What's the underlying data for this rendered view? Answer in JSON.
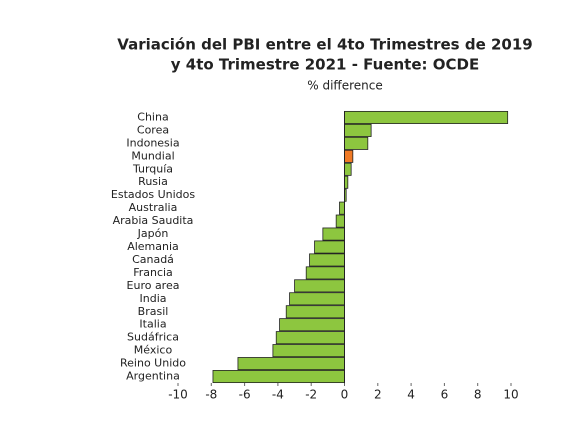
{
  "chart_data": {
    "type": "hbar",
    "title": [
      "Variación del PBI entre el 4to Trimestres de 2019",
      "y 4to Trimestre 2021 - Fuente: OCDE"
    ],
    "subtitle": "% difference",
    "categories": [
      "China",
      "Corea",
      "Indonesia",
      "Mundial",
      "Turquía",
      "Rusia",
      "Estados Unidos",
      "Australia",
      "Arabia Saudita",
      "Japón",
      "Alemania",
      "Canadá",
      "Francia",
      "Euro area",
      "India",
      "Brasil",
      "Italia",
      "Sudáfrica",
      "México",
      "Reino Unido",
      "Argentina"
    ],
    "values": [
      9.8,
      1.6,
      1.4,
      0.5,
      0.4,
      0.2,
      0.1,
      -0.3,
      -0.5,
      -1.3,
      -1.8,
      -2.1,
      -2.3,
      -3.0,
      -3.3,
      -3.5,
      -3.9,
      -4.1,
      -4.3,
      -6.4,
      -7.9
    ],
    "colors": [
      "#8dc63f",
      "#8dc63f",
      "#8dc63f",
      "#f07a26",
      "#8dc63f",
      "#8dc63f",
      "#8dc63f",
      "#8dc63f",
      "#8dc63f",
      "#8dc63f",
      "#8dc63f",
      "#8dc63f",
      "#8dc63f",
      "#8dc63f",
      "#8dc63f",
      "#8dc63f",
      "#8dc63f",
      "#8dc63f",
      "#8dc63f",
      "#8dc63f",
      "#8dc63f"
    ],
    "xlim": [
      -10,
      10
    ],
    "xticks": [
      -10,
      -8,
      -6,
      -4,
      -2,
      0,
      2,
      4,
      6,
      8,
      10
    ]
  }
}
